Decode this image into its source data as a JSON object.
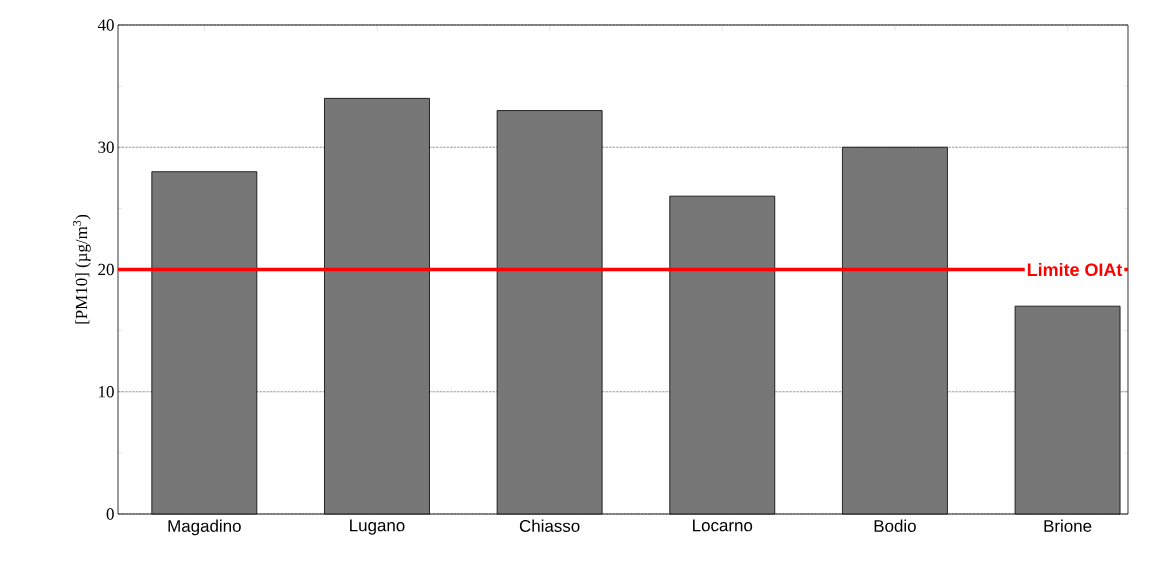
{
  "chart_data": {
    "type": "bar",
    "ylabel": "[PM10] (µg/m$^{3}$)",
    "categories": [
      "Magadino",
      "Lugano",
      "Chiasso",
      "Locarno",
      "Bodio",
      "Brione"
    ],
    "values": [
      28,
      34,
      33,
      26,
      30,
      17
    ],
    "color": "#777777",
    "ylim": [
      0,
      40
    ],
    "yticks": [
      0,
      10,
      20,
      30,
      40
    ],
    "grid": "y",
    "ref_lines": [
      {
        "axis": "y",
        "value": 20,
        "label": "Limite OIAt",
        "color": "#ff0000"
      }
    ]
  }
}
